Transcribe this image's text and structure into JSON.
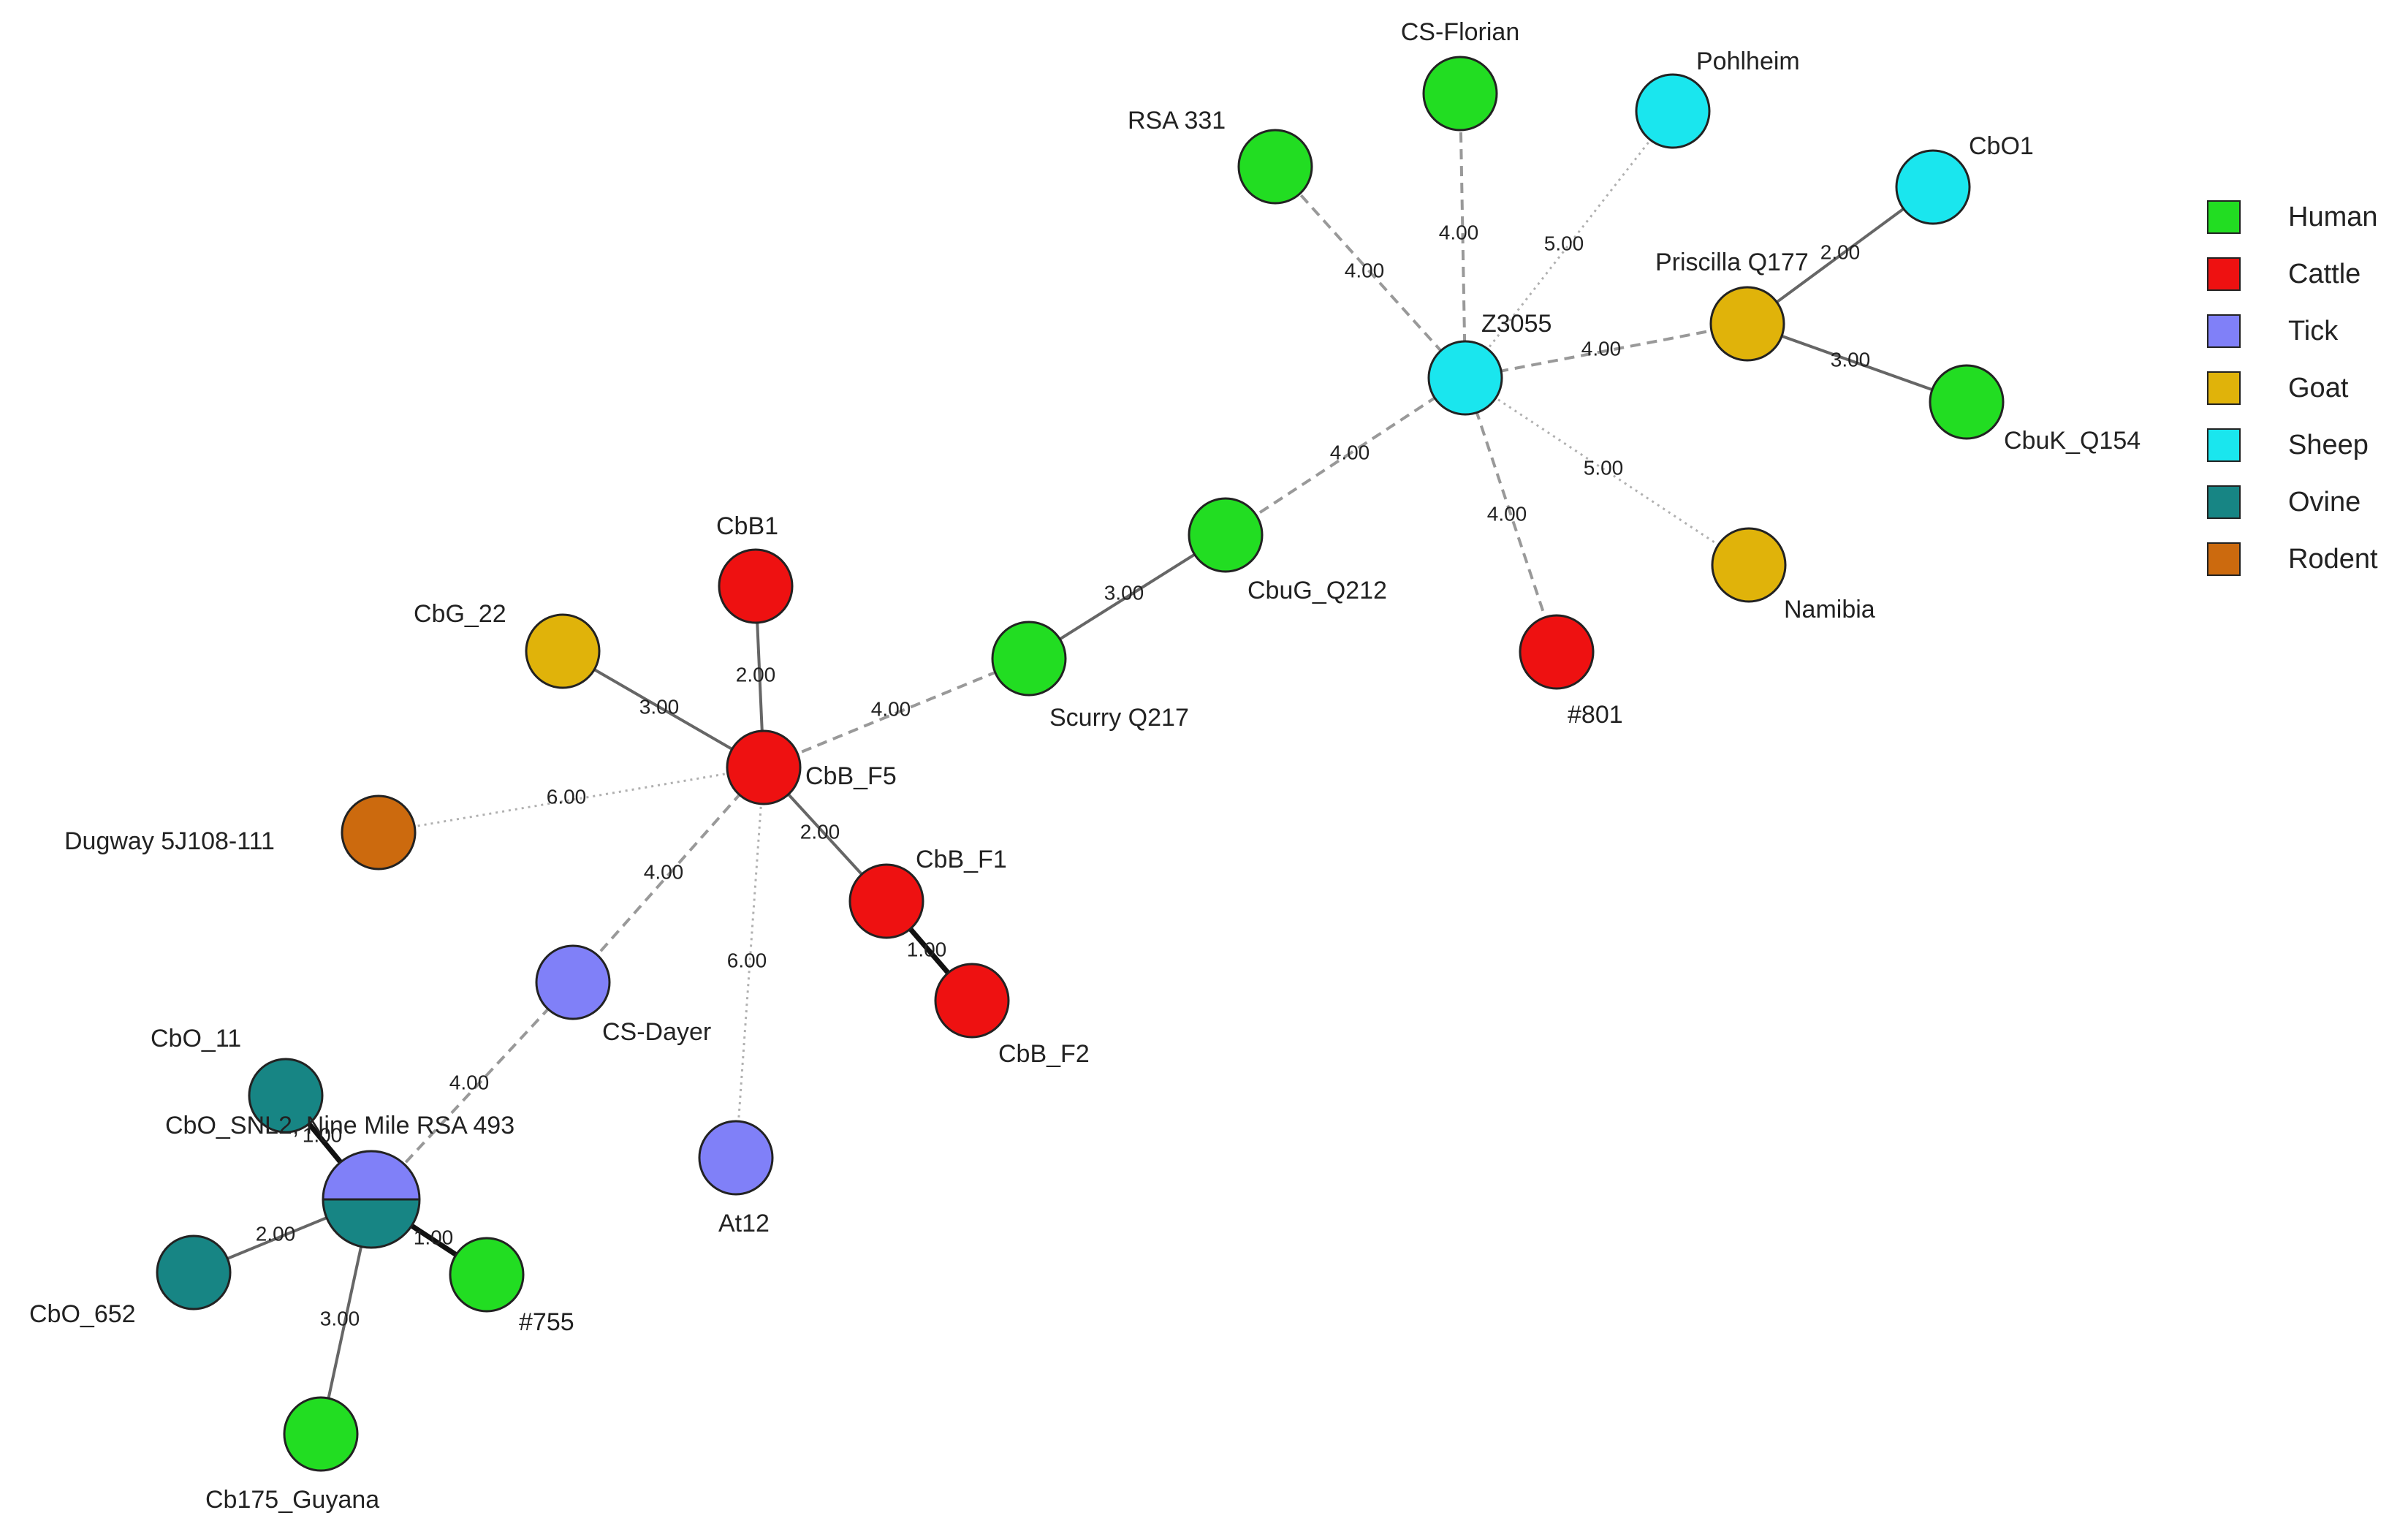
{
  "legend": [
    {
      "key": "human",
      "label": "Human",
      "color": "#22dd22"
    },
    {
      "key": "cattle",
      "label": "Cattle",
      "color": "#ee1111"
    },
    {
      "key": "tick",
      "label": "Tick",
      "color": "#8080f8"
    },
    {
      "key": "goat",
      "label": "Goat",
      "color": "#e0b30a"
    },
    {
      "key": "sheep",
      "label": "Sheep",
      "color": "#1ae6ee"
    },
    {
      "key": "ovine",
      "label": "Ovine",
      "color": "#178584"
    },
    {
      "key": "rodent",
      "label": "Rodent",
      "color": "#cc6a0e"
    }
  ],
  "nodes": [
    {
      "id": "cs_florian",
      "label": "CS-Florian",
      "type": "human"
    },
    {
      "id": "pohlheim",
      "label": "Pohlheim",
      "type": "sheep"
    },
    {
      "id": "rsa331",
      "label": "RSA 331",
      "type": "human"
    },
    {
      "id": "cbo1",
      "label": "CbO1",
      "type": "sheep"
    },
    {
      "id": "priscilla",
      "label": "Priscilla Q177",
      "type": "goat"
    },
    {
      "id": "z3055",
      "label": "Z3055",
      "type": "sheep"
    },
    {
      "id": "cbuk_q154",
      "label": "CbuK_Q154",
      "type": "human"
    },
    {
      "id": "namibia",
      "label": "Namibia",
      "type": "goat"
    },
    {
      "id": "n801",
      "label": "#801",
      "type": "cattle"
    },
    {
      "id": "cbug_q212",
      "label": "CbuG_Q212",
      "type": "human"
    },
    {
      "id": "scurry",
      "label": "Scurry Q217",
      "type": "human"
    },
    {
      "id": "cbb1",
      "label": "CbB1",
      "type": "cattle"
    },
    {
      "id": "cbg22",
      "label": "CbG_22",
      "type": "goat"
    },
    {
      "id": "cbb_f5",
      "label": "CbB_F5",
      "type": "cattle"
    },
    {
      "id": "dugway",
      "label": "Dugway 5J108-111",
      "type": "rodent"
    },
    {
      "id": "cbb_f1",
      "label": "CbB_F1",
      "type": "cattle"
    },
    {
      "id": "cbb_f2",
      "label": "CbB_F2",
      "type": "cattle"
    },
    {
      "id": "cs_dayer",
      "label": "CS-Dayer",
      "type": "tick"
    },
    {
      "id": "at12",
      "label": "At12",
      "type": "tick"
    },
    {
      "id": "cbo_11",
      "label": "CbO_11",
      "type": "ovine"
    },
    {
      "id": "ninemile",
      "label": "CbO_SNL2, Nine Mile RSA 493",
      "type": "tick/ovine",
      "split": [
        "tick",
        "ovine"
      ]
    },
    {
      "id": "cbo_652",
      "label": "CbO_652",
      "type": "ovine"
    },
    {
      "id": "n755",
      "label": "#755",
      "type": "human"
    },
    {
      "id": "cb175",
      "label": "Cb175_Guyana",
      "type": "human"
    }
  ],
  "edges": [
    {
      "source": "z3055",
      "target": "cs_florian",
      "weight": "4.00",
      "style": "dashed"
    },
    {
      "source": "z3055",
      "target": "pohlheim",
      "weight": "5.00",
      "style": "dotted"
    },
    {
      "source": "z3055",
      "target": "rsa331",
      "weight": "4.00",
      "style": "dashed"
    },
    {
      "source": "z3055",
      "target": "priscilla",
      "weight": "4.00",
      "style": "dashed"
    },
    {
      "source": "priscilla",
      "target": "cbo1",
      "weight": "2.00",
      "style": "solid"
    },
    {
      "source": "priscilla",
      "target": "cbuk_q154",
      "weight": "3.00",
      "style": "solid"
    },
    {
      "source": "z3055",
      "target": "namibia",
      "weight": "5.00",
      "style": "dotted"
    },
    {
      "source": "z3055",
      "target": "n801",
      "weight": "4.00",
      "style": "dashed"
    },
    {
      "source": "z3055",
      "target": "cbug_q212",
      "weight": "4.00",
      "style": "dashed"
    },
    {
      "source": "cbug_q212",
      "target": "scurry",
      "weight": "3.00",
      "style": "solid"
    },
    {
      "source": "scurry",
      "target": "cbb_f5",
      "weight": "4.00",
      "style": "dashed"
    },
    {
      "source": "cbb_f5",
      "target": "cbb1",
      "weight": "2.00",
      "style": "solid"
    },
    {
      "source": "cbb_f5",
      "target": "cbg22",
      "weight": "3.00",
      "style": "solid"
    },
    {
      "source": "cbb_f5",
      "target": "dugway",
      "weight": "6.00",
      "style": "dotted"
    },
    {
      "source": "cbb_f5",
      "target": "cbb_f1",
      "weight": "2.00",
      "style": "solid"
    },
    {
      "source": "cbb_f1",
      "target": "cbb_f2",
      "weight": "1.00",
      "style": "thick"
    },
    {
      "source": "cbb_f5",
      "target": "cs_dayer",
      "weight": "4.00",
      "style": "dashed"
    },
    {
      "source": "cbb_f5",
      "target": "at12",
      "weight": "6.00",
      "style": "dotted"
    },
    {
      "source": "cs_dayer",
      "target": "ninemile",
      "weight": "4.00",
      "style": "dashed"
    },
    {
      "source": "ninemile",
      "target": "cbo_11",
      "weight": "1.00",
      "style": "thick"
    },
    {
      "source": "ninemile",
      "target": "cbo_652",
      "weight": "2.00",
      "style": "solid"
    },
    {
      "source": "ninemile",
      "target": "n755",
      "weight": "1.00",
      "style": "thick"
    },
    {
      "source": "ninemile",
      "target": "cb175",
      "weight": "3.00",
      "style": "solid"
    }
  ]
}
